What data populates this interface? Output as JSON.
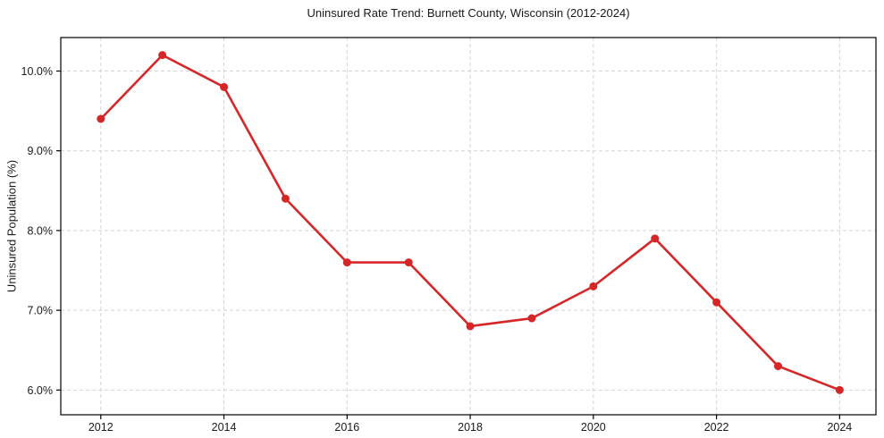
{
  "chart_data": {
    "type": "line",
    "title": "Uninsured Rate Trend: Burnett County, Wisconsin (2012-2024)",
    "xlabel": "",
    "ylabel": "Uninsured Population (%)",
    "x": [
      2012,
      2013,
      2014,
      2015,
      2016,
      2017,
      2018,
      2019,
      2020,
      2021,
      2022,
      2023,
      2024
    ],
    "values": [
      9.4,
      10.2,
      9.8,
      8.4,
      7.6,
      7.6,
      6.8,
      6.9,
      7.3,
      7.9,
      7.1,
      6.3,
      6.0
    ],
    "xticks": [
      2012,
      2014,
      2016,
      2018,
      2020,
      2022,
      2024
    ],
    "xtick_labels": [
      "2012",
      "2014",
      "2016",
      "2018",
      "2020",
      "2022",
      "2024"
    ],
    "yticks": [
      6.0,
      7.0,
      8.0,
      9.0,
      10.0
    ],
    "ytick_labels": [
      "6.0%",
      "7.0%",
      "8.0%",
      "9.0%",
      "10.0%"
    ],
    "xlim": [
      2011.35,
      2024.59
    ],
    "ylim": [
      5.69,
      10.42
    ],
    "grid": true,
    "grid_style": "dashed",
    "legend": "none",
    "line_color": "#d62728",
    "marker_color": "#d62728",
    "grid_color": "#d4d4d4",
    "axis_color": "#000000",
    "text_color": "#1a1a1a"
  }
}
